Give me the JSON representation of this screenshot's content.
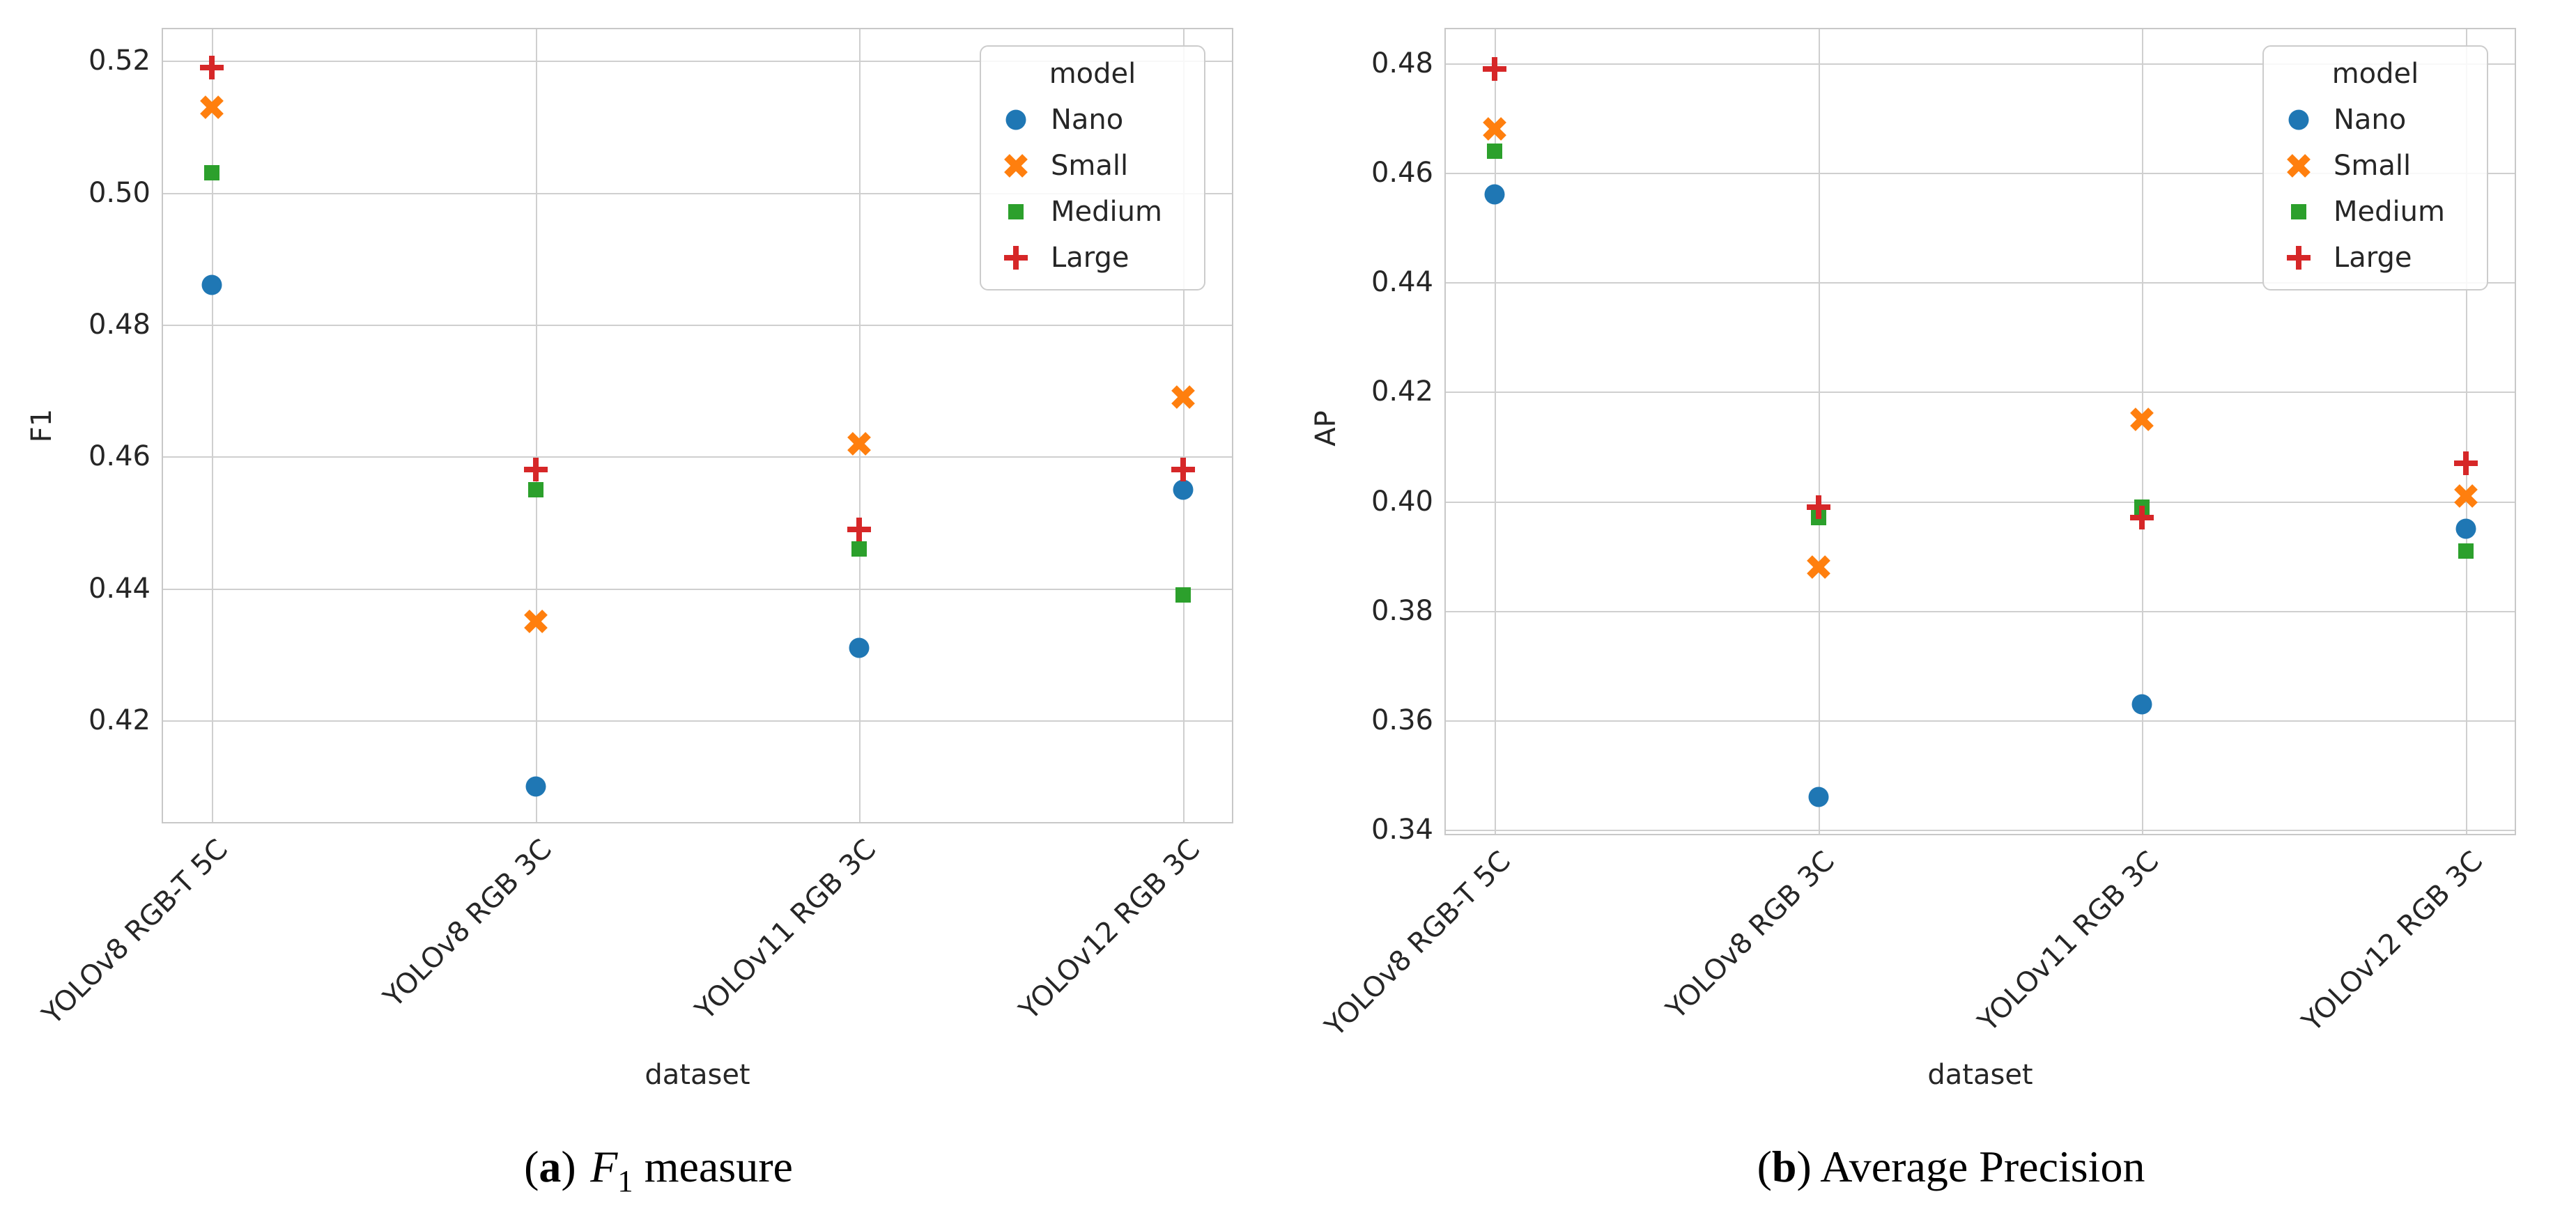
{
  "chart_data": [
    {
      "type": "scatter",
      "panel": "a",
      "xlabel": "dataset",
      "ylabel": "F1",
      "legend_title": "model",
      "legend_position": "upper right",
      "grid": true,
      "categories": [
        "YOLOv8 RGB-T 5C",
        "YOLOv8 RGB 3C",
        "YOLOv11 RGB 3C",
        "YOLOv12 RGB 3C"
      ],
      "series": [
        {
          "name": "Nano",
          "marker": "circle",
          "color": "#1f77b4",
          "values": [
            0.486,
            0.41,
            0.431,
            0.455
          ]
        },
        {
          "name": "Small",
          "marker": "x",
          "color": "#ff7f0e",
          "values": [
            0.513,
            0.435,
            0.462,
            0.469
          ]
        },
        {
          "name": "Medium",
          "marker": "square",
          "color": "#2ca02c",
          "values": [
            0.503,
            0.455,
            0.446,
            0.439
          ]
        },
        {
          "name": "Large",
          "marker": "plus",
          "color": "#d62728",
          "values": [
            0.519,
            0.458,
            0.449,
            0.458
          ]
        }
      ],
      "yticks": [
        0.42,
        0.44,
        0.46,
        0.48,
        0.5,
        0.52
      ],
      "ylim": [
        0.4046,
        0.5248
      ]
    },
    {
      "type": "scatter",
      "panel": "b",
      "xlabel": "dataset",
      "ylabel": "AP",
      "legend_title": "model",
      "legend_position": "upper right",
      "grid": true,
      "categories": [
        "YOLOv8 RGB-T 5C",
        "YOLOv8 RGB 3C",
        "YOLOv11 RGB 3C",
        "YOLOv12 RGB 3C"
      ],
      "series": [
        {
          "name": "Nano",
          "marker": "circle",
          "color": "#1f77b4",
          "values": [
            0.456,
            0.346,
            0.363,
            0.395
          ]
        },
        {
          "name": "Small",
          "marker": "x",
          "color": "#ff7f0e",
          "values": [
            0.468,
            0.388,
            0.415,
            0.401
          ]
        },
        {
          "name": "Medium",
          "marker": "square",
          "color": "#2ca02c",
          "values": [
            0.464,
            0.397,
            0.399,
            0.391
          ]
        },
        {
          "name": "Large",
          "marker": "plus",
          "color": "#d62728",
          "values": [
            0.479,
            0.399,
            0.397,
            0.407
          ]
        }
      ],
      "yticks": [
        0.34,
        0.36,
        0.38,
        0.4,
        0.42,
        0.44,
        0.46,
        0.48
      ],
      "ylim": [
        0.3393,
        0.4862
      ]
    }
  ],
  "captions": {
    "a": {
      "paren_open": "(",
      "letter": "a",
      "paren_close": ")",
      "math": "F",
      "sub": "1",
      "text": " measure"
    },
    "b": {
      "paren_open": "(",
      "letter": "b",
      "paren_close": ")",
      "text": " Average Precision"
    }
  },
  "colors": {
    "grid": "#cfcfcf",
    "spine": "#c8c8c8",
    "tick_text": "#262626",
    "nano": "#1f77b4",
    "small": "#ff7f0e",
    "medium": "#2ca02c",
    "large": "#d62728"
  }
}
